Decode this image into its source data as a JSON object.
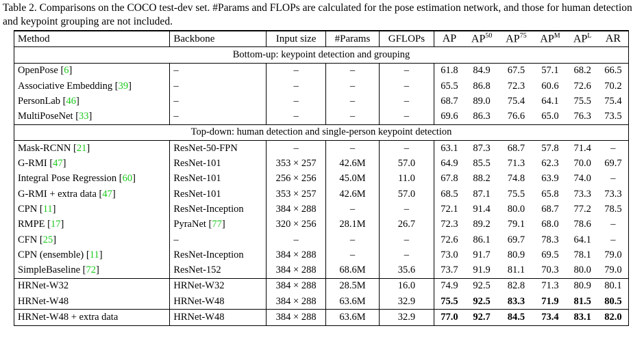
{
  "caption": "Table 2. Comparisons on the COCO test-dev set. #Params and FLOPs are calculated for the pose estimation network, and those for human detection and keypoint grouping are not included.",
  "table": {
    "header": [
      "Method",
      "Backbone",
      "Input size",
      "#Params",
      "GFLOPs",
      "AP",
      {
        "text": "AP",
        "sup": "50"
      },
      {
        "text": "AP",
        "sup": "75"
      },
      {
        "text": "AP",
        "sup": "M"
      },
      {
        "text": "AP",
        "sup": "L"
      },
      "AR"
    ],
    "sections": [
      {
        "title": "Bottom-up: keypoint detection and grouping",
        "rows": [
          {
            "cells": [
              {
                "text": "OpenPose",
                "ref": "[6]"
              },
              "–",
              "–",
              "–",
              "–",
              "61.8",
              "84.9",
              "67.5",
              "57.1",
              "68.2",
              "66.5"
            ]
          },
          {
            "cells": [
              {
                "text": "Associative Embedding",
                "ref": "[39]"
              },
              "–",
              "–",
              "–",
              "–",
              "65.5",
              "86.8",
              "72.3",
              "60.6",
              "72.6",
              "70.2"
            ]
          },
          {
            "cells": [
              {
                "text": "PersonLab",
                "ref": "[46]"
              },
              "–",
              "–",
              "–",
              "–",
              "68.7",
              "89.0",
              "75.4",
              "64.1",
              "75.5",
              "75.4"
            ]
          },
          {
            "cells": [
              {
                "text": "MultiPoseNet",
                "ref": "[33]"
              },
              "–",
              "–",
              "–",
              "–",
              "69.6",
              "86.3",
              "76.6",
              "65.0",
              "76.3",
              "73.5"
            ]
          }
        ]
      },
      {
        "title": "Top-down: human detection and single-person keypoint detection",
        "rows": [
          {
            "cells": [
              {
                "text": "Mask-RCNN",
                "ref": "[21]"
              },
              "ResNet-50-FPN",
              "–",
              "–",
              "–",
              "63.1",
              "87.3",
              "68.7",
              "57.8",
              "71.4",
              "–"
            ]
          },
          {
            "cells": [
              {
                "text": "G-RMI",
                "ref": "[47]"
              },
              "ResNet-101",
              "353 × 257",
              "42.6M",
              "57.0",
              "64.9",
              "85.5",
              "71.3",
              "62.3",
              "70.0",
              "69.7"
            ]
          },
          {
            "cells": [
              {
                "text": "Integral Pose Regression",
                "ref": "[60]"
              },
              "ResNet-101",
              "256 × 256",
              "45.0M",
              "11.0",
              "67.8",
              "88.2",
              "74.8",
              "63.9",
              "74.0",
              "–"
            ]
          },
          {
            "cells": [
              {
                "text": "G-RMI + extra data",
                "ref": "[47]"
              },
              "ResNet-101",
              "353 × 257",
              "42.6M",
              "57.0",
              "68.5",
              "87.1",
              "75.5",
              "65.8",
              "73.3",
              "73.3"
            ]
          },
          {
            "cells": [
              {
                "text": "CPN",
                "ref": "[11]"
              },
              "ResNet-Inception",
              "384 × 288",
              "–",
              "–",
              "72.1",
              "91.4",
              "80.0",
              "68.7",
              "77.2",
              "78.5"
            ]
          },
          {
            "cells": [
              {
                "text": "RMPE",
                "ref": "[17]"
              },
              {
                "text": "PyraNet",
                "ref": "[77]"
              },
              "320 × 256",
              "28.1M",
              "26.7",
              "72.3",
              "89.2",
              "79.1",
              "68.0",
              "78.6",
              "–"
            ]
          },
          {
            "cells": [
              {
                "text": "CFN",
                "ref": "[25]"
              },
              "–",
              "–",
              "–",
              "–",
              "72.6",
              "86.1",
              "69.7",
              "78.3",
              "64.1",
              "–"
            ]
          },
          {
            "cells": [
              {
                "text": "CPN (ensemble)",
                "ref": "[11]"
              },
              "ResNet-Inception",
              "384 × 288",
              "–",
              "–",
              "73.0",
              "91.7",
              "80.9",
              "69.5",
              "78.1",
              "79.0"
            ]
          },
          {
            "cells": [
              {
                "text": "SimpleBaseline",
                "ref": "[72]"
              },
              "ResNet-152",
              "384 × 288",
              "68.6M",
              "35.6",
              "73.7",
              "91.9",
              "81.1",
              "70.3",
              "80.0",
              "79.0"
            ]
          }
        ]
      },
      {
        "rows": [
          {
            "cells": [
              "HRNet-W32",
              "HRNet-W32",
              "384 × 288",
              "28.5M",
              "16.0",
              "74.9",
              "92.5",
              "82.8",
              "71.3",
              "80.9",
              "80.1"
            ]
          },
          {
            "cells": [
              "HRNet-W48",
              "HRNet-W48",
              "384 × 288",
              "63.6M",
              "32.9",
              "75.5",
              "92.5",
              "83.3",
              "71.9",
              "81.5",
              "80.5"
            ],
            "bold": true
          }
        ]
      },
      {
        "rows": [
          {
            "cells": [
              "HRNet-W48 + extra data",
              "HRNet-W48",
              "384 × 288",
              "63.6M",
              "32.9",
              "77.0",
              "92.7",
              "84.5",
              "73.4",
              "83.1",
              "82.0"
            ],
            "bold": true
          }
        ]
      }
    ]
  }
}
